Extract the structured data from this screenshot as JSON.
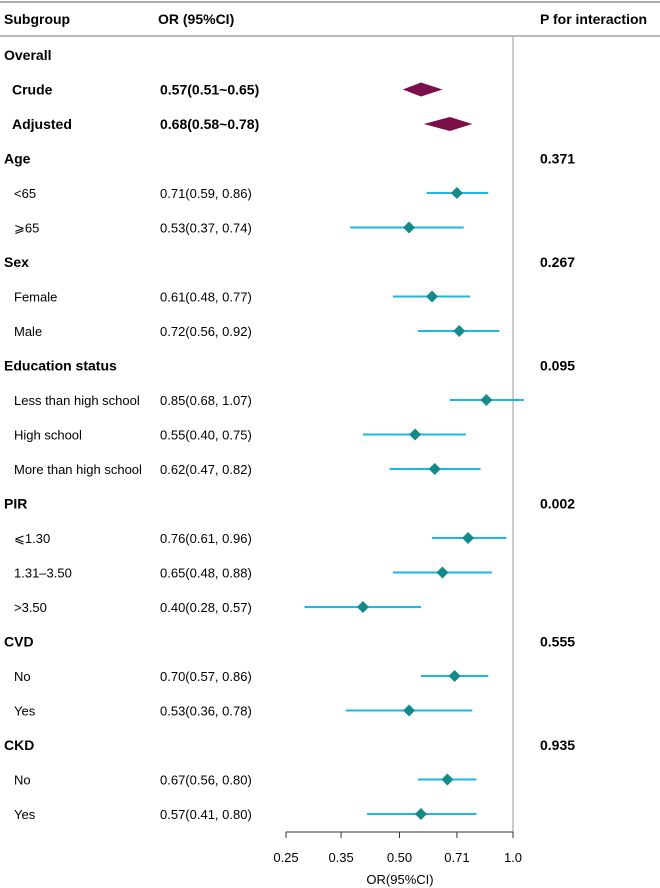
{
  "header": {
    "subgroup": "Subgroup",
    "or_ci": "OR (95%CI)",
    "p_interaction": "P for interaction"
  },
  "colors": {
    "diamond": "#7b0f4a",
    "marker": "#148a8a",
    "ci_line": "#1ab7e8",
    "reference": "#aaaaaa",
    "frame": "#777777"
  },
  "chart_data": {
    "type": "forest",
    "x_scale": "log",
    "xlim": [
      0.25,
      1.0
    ],
    "reference_line": 1.0,
    "xlabel": "OR(95%CI)",
    "ticks": [
      {
        "value": 0.25,
        "label": "0.25"
      },
      {
        "value": 0.35,
        "label": "0.35"
      },
      {
        "value": 0.5,
        "label": "0.50"
      },
      {
        "value": 0.71,
        "label": "0.71"
      },
      {
        "value": 1.0,
        "label": "1.0"
      }
    ],
    "rows": [
      {
        "kind": "group",
        "label": "Overall",
        "ci_text": "",
        "p": ""
      },
      {
        "kind": "overall",
        "label": "Crude",
        "ci_text": "0.57(0.51~0.65)",
        "or": 0.57,
        "lo": 0.51,
        "hi": 0.65
      },
      {
        "kind": "overall",
        "label": "Adjusted",
        "ci_text": "0.68(0.58~0.78)",
        "or": 0.68,
        "lo": 0.58,
        "hi": 0.78
      },
      {
        "kind": "group",
        "label": "Age",
        "ci_text": "",
        "p": "0.371"
      },
      {
        "kind": "sub",
        "label": "<65",
        "ci_text": "0.71(0.59, 0.86)",
        "or": 0.71,
        "lo": 0.59,
        "hi": 0.86
      },
      {
        "kind": "sub",
        "label": "⩾65",
        "ci_text": "0.53(0.37, 0.74)",
        "or": 0.53,
        "lo": 0.37,
        "hi": 0.74
      },
      {
        "kind": "group",
        "label": "Sex",
        "ci_text": "",
        "p": "0.267"
      },
      {
        "kind": "sub",
        "label": "Female",
        "ci_text": "0.61(0.48, 0.77)",
        "or": 0.61,
        "lo": 0.48,
        "hi": 0.77
      },
      {
        "kind": "sub",
        "label": "Male",
        "ci_text": "0.72(0.56, 0.92)",
        "or": 0.72,
        "lo": 0.56,
        "hi": 0.92
      },
      {
        "kind": "group",
        "label": "Education status",
        "ci_text": "",
        "p": "0.095"
      },
      {
        "kind": "sub",
        "label": "Less than high school",
        "ci_text": "0.85(0.68, 1.07)",
        "or": 0.85,
        "lo": 0.68,
        "hi": 1.07
      },
      {
        "kind": "sub",
        "label": "High school",
        "ci_text": "0.55(0.40, 0.75)",
        "or": 0.55,
        "lo": 0.4,
        "hi": 0.75
      },
      {
        "kind": "sub",
        "label": "More than high school",
        "ci_text": "0.62(0.47, 0.82)",
        "or": 0.62,
        "lo": 0.47,
        "hi": 0.82
      },
      {
        "kind": "group",
        "label": "PIR",
        "ci_text": "",
        "p": "0.002"
      },
      {
        "kind": "sub",
        "label": "⩽1.30",
        "ci_text": "0.76(0.61, 0.96)",
        "or": 0.76,
        "lo": 0.61,
        "hi": 0.96
      },
      {
        "kind": "sub",
        "label": "1.31–3.50",
        "ci_text": "0.65(0.48, 0.88)",
        "or": 0.65,
        "lo": 0.48,
        "hi": 0.88
      },
      {
        "kind": "sub",
        "label": ">3.50",
        "ci_text": "0.40(0.28, 0.57)",
        "or": 0.4,
        "lo": 0.28,
        "hi": 0.57
      },
      {
        "kind": "group",
        "label": "CVD",
        "ci_text": "",
        "p": "0.555"
      },
      {
        "kind": "sub",
        "label": "No",
        "ci_text": "0.70(0.57, 0.86)",
        "or": 0.7,
        "lo": 0.57,
        "hi": 0.86
      },
      {
        "kind": "sub",
        "label": "Yes",
        "ci_text": "0.53(0.36, 0.78)",
        "or": 0.53,
        "lo": 0.36,
        "hi": 0.78
      },
      {
        "kind": "group",
        "label": "CKD",
        "ci_text": "",
        "p": "0.935"
      },
      {
        "kind": "sub",
        "label": "No",
        "ci_text": "0.67(0.56, 0.80)",
        "or": 0.67,
        "lo": 0.56,
        "hi": 0.8
      },
      {
        "kind": "sub",
        "label": "Yes",
        "ci_text": "0.57(0.41, 0.80)",
        "or": 0.57,
        "lo": 0.41,
        "hi": 0.8
      }
    ]
  }
}
